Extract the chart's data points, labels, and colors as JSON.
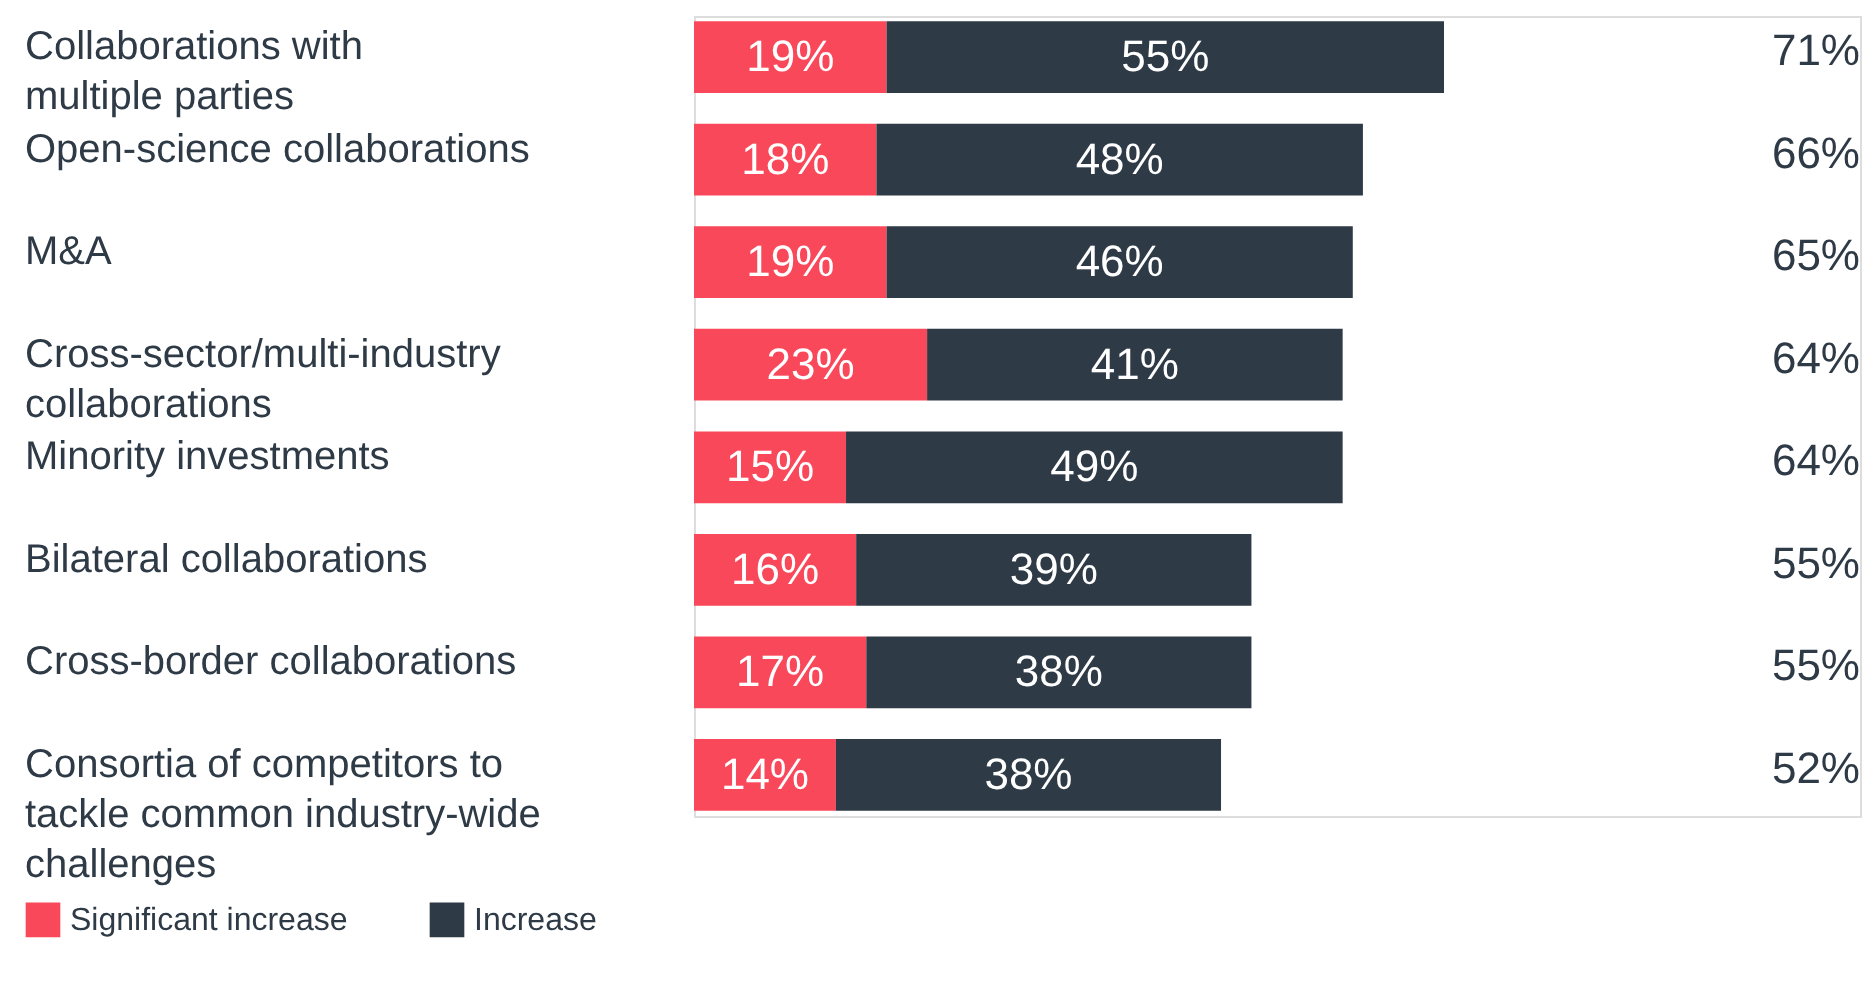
{
  "chart_data": {
    "type": "bar",
    "orientation": "horizontal",
    "stacked": true,
    "legend": "bottom",
    "tick_labels": "y",
    "categories": [
      "Collaborations with multiple parties",
      "Open-science collaborations",
      "M&A",
      "Cross-sector/multi-industry collaborations",
      "Minority investments",
      "Bilateral collaborations",
      "Cross-border collaborations",
      "Consortia of competitors to tackle common industry-wide challenges"
    ],
    "series": [
      {
        "name": "Significant increase",
        "color": "#f9485a",
        "values": [
          19,
          18,
          19,
          23,
          15,
          16,
          17,
          14
        ],
        "value_labels": [
          "19%",
          "18%",
          "19%",
          "23%",
          "15%",
          "16%",
          "17%",
          "14%"
        ]
      },
      {
        "name": "Increase",
        "color": "#2e3a46",
        "values": [
          55,
          48,
          46,
          41,
          49,
          39,
          38,
          38
        ],
        "value_labels": [
          "55%",
          "48%",
          "46%",
          "41%",
          "49%",
          "39%",
          "38%",
          "38%"
        ]
      }
    ],
    "annotations": [
      "71%",
      "66%",
      "65%",
      "64%",
      "64%",
      "55%",
      "55%",
      "52%"
    ]
  }
}
